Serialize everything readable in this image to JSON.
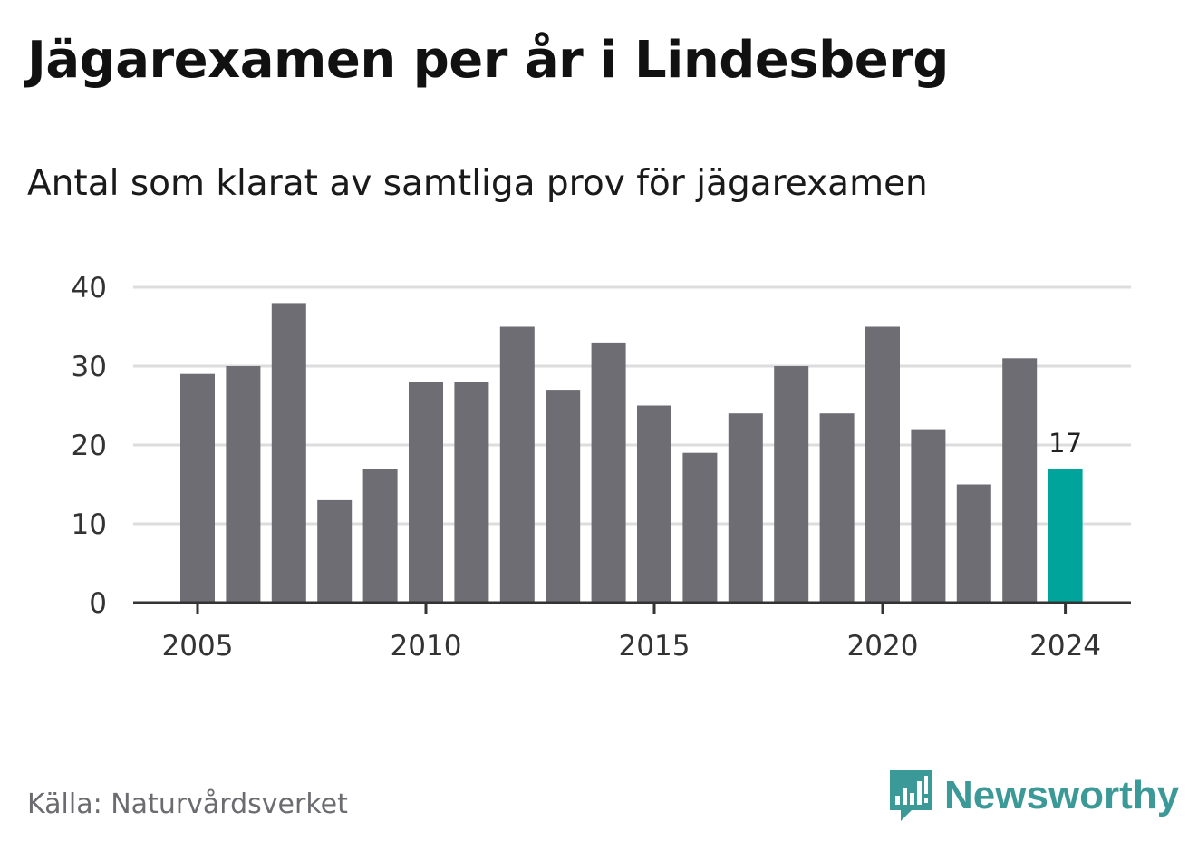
{
  "title": "Jägarexamen per år i Lindesberg",
  "subtitle": "Antal som klarat av samtliga prov för jägarexamen",
  "source": "Källa: Naturvårdsverket",
  "brand": {
    "name": "Newsworthy",
    "icon": "newsworthy-logo-icon",
    "color": "#3b9a97"
  },
  "colors": {
    "bar": "#6e6d73",
    "highlight": "#00a49a",
    "grid": "#dddddd",
    "axis": "#333333"
  },
  "chart_data": {
    "type": "bar",
    "x": [
      2005,
      2006,
      2007,
      2008,
      2009,
      2010,
      2011,
      2012,
      2013,
      2014,
      2015,
      2016,
      2017,
      2018,
      2019,
      2020,
      2021,
      2022,
      2023,
      2024
    ],
    "values": [
      29,
      30,
      38,
      13,
      17,
      28,
      28,
      35,
      27,
      33,
      25,
      19,
      24,
      30,
      24,
      35,
      22,
      15,
      31,
      17
    ],
    "ylim": [
      0,
      40
    ],
    "yticks": [
      "0",
      "10",
      "20",
      "30",
      "40"
    ],
    "xticks": [
      "2005",
      "2010",
      "2015",
      "2020",
      "2024"
    ],
    "highlight_index": 19,
    "highlight_label": "17",
    "grid": true
  }
}
